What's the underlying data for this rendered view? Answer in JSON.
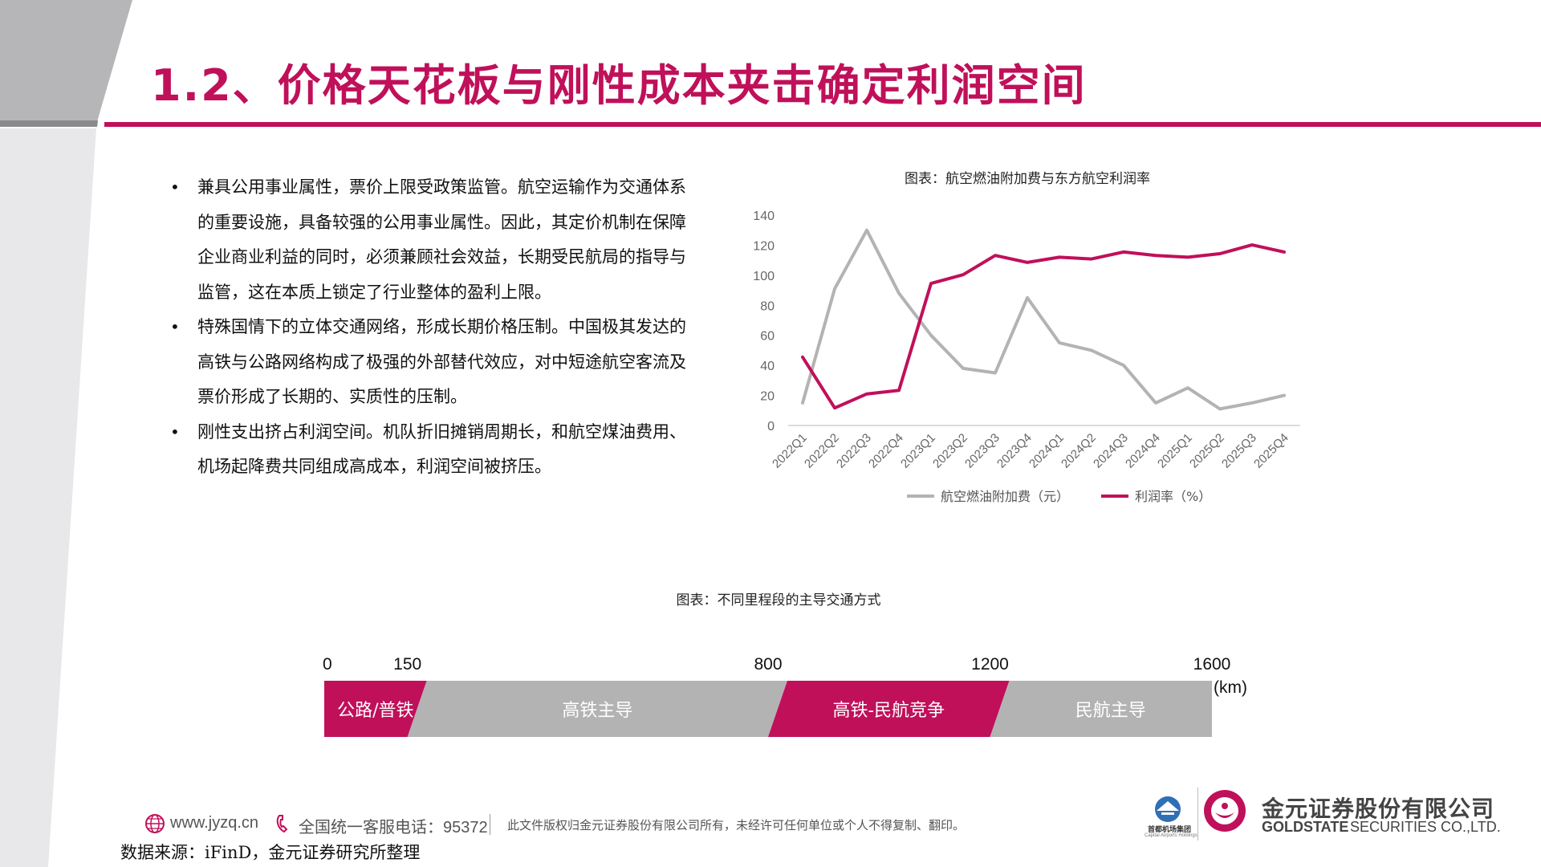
{
  "slide": {
    "title": "1.2、价格天花板与刚性成本夹击确定利润空间",
    "accent_color": "#c0105a",
    "grey_color": "#b3b3b3"
  },
  "bullets": [
    {
      "text": "兼具公用事业属性，票价上限受政策监管。航空运输作为交通体系的重要设施，具备较强的公用事业属性。因此，其定价机制在保障企业商业利益的同时，必须兼顾社会效益，长期受民航局的指导与监管，这在本质上锁定了行业整体的盈利上限。"
    },
    {
      "text": "特殊国情下的立体交通网络，形成长期价格压制。中国极其发达的高铁与公路网络构成了极强的外部替代效应，对中短途航空客流及票价形成了长期的、实质性的压制。"
    },
    {
      "text": "刚性支出挤占利润空间。机队折旧摊销周期长，和航空煤油费用、机场起降费共同组成高成本，利润空间被挤压。"
    }
  ],
  "chart_data": [
    {
      "type": "line",
      "title": "图表：航空燃油附加费与东方航空利润率",
      "categories": [
        "2022Q1",
        "2022Q2",
        "2022Q3",
        "2022Q4",
        "2023Q1",
        "2023Q2",
        "2023Q3",
        "2023Q4",
        "2024Q1",
        "2024Q2",
        "2024Q3",
        "2024Q4",
        "2025Q1",
        "2025Q2",
        "2025Q3",
        "2025Q4"
      ],
      "y_left": {
        "min": 0,
        "max": 140,
        "ticks": [
          "140",
          "120",
          "100",
          "80",
          "60",
          "40",
          "20",
          "0"
        ]
      },
      "y_right": {
        "min": -100,
        "max": 20,
        "ticks": [
          "20",
          "0",
          "-20",
          "-40",
          "-60",
          "-80",
          "-100"
        ]
      },
      "series": [
        {
          "name": "航空燃油附加费（元）",
          "axis": "left",
          "color": "#b3b3b3",
          "values": [
            15,
            91,
            130,
            88,
            60,
            38,
            35,
            85,
            55,
            50,
            40,
            15,
            25,
            11,
            15,
            20
          ]
        },
        {
          "name": "利润率（%）",
          "axis": "right",
          "color": "#c0105a",
          "values": [
            -61,
            -90,
            -82,
            -80,
            -19,
            -14,
            -3,
            -7,
            -4,
            -5,
            -1,
            -3,
            -4,
            -2,
            3,
            -1
          ]
        }
      ],
      "legend_position": "bottom"
    },
    {
      "type": "bar",
      "title": "图表：不同里程段的主导交通方式",
      "unit": "(km)",
      "tick_labels": [
        "0",
        "150",
        "800",
        "1200",
        "1600"
      ],
      "ticks": [
        0,
        150,
        800,
        1200,
        1600
      ],
      "segments": [
        {
          "label": "公路/普铁",
          "start": 0,
          "end": 150,
          "color": "#c0105a"
        },
        {
          "label": "高铁主导",
          "start": 150,
          "end": 800,
          "color": "#b3b3b3"
        },
        {
          "label": "高铁-民航竞争",
          "start": 800,
          "end": 1200,
          "color": "#c0105a"
        },
        {
          "label": "民航主导",
          "start": 1200,
          "end": 1600,
          "color": "#b3b3b3"
        }
      ]
    }
  ],
  "footer": {
    "website": "www.jyzq.cn",
    "hotline": "全国统一客服电话：95372",
    "copyright": "此文件版权归金元证券股份有限公司所有，未经许可任何单位或个人不得复制、翻印。",
    "partner_name": "首都机场集团",
    "partner_sub": "Capital Airports Holdings",
    "company_cn": "金元证券股份有限公司",
    "company_en_bold": "GOLDSTATE",
    "company_en": "SECURITIES CO.,LTD."
  },
  "source": "数据来源：iFinD，金元证券研究所整理"
}
